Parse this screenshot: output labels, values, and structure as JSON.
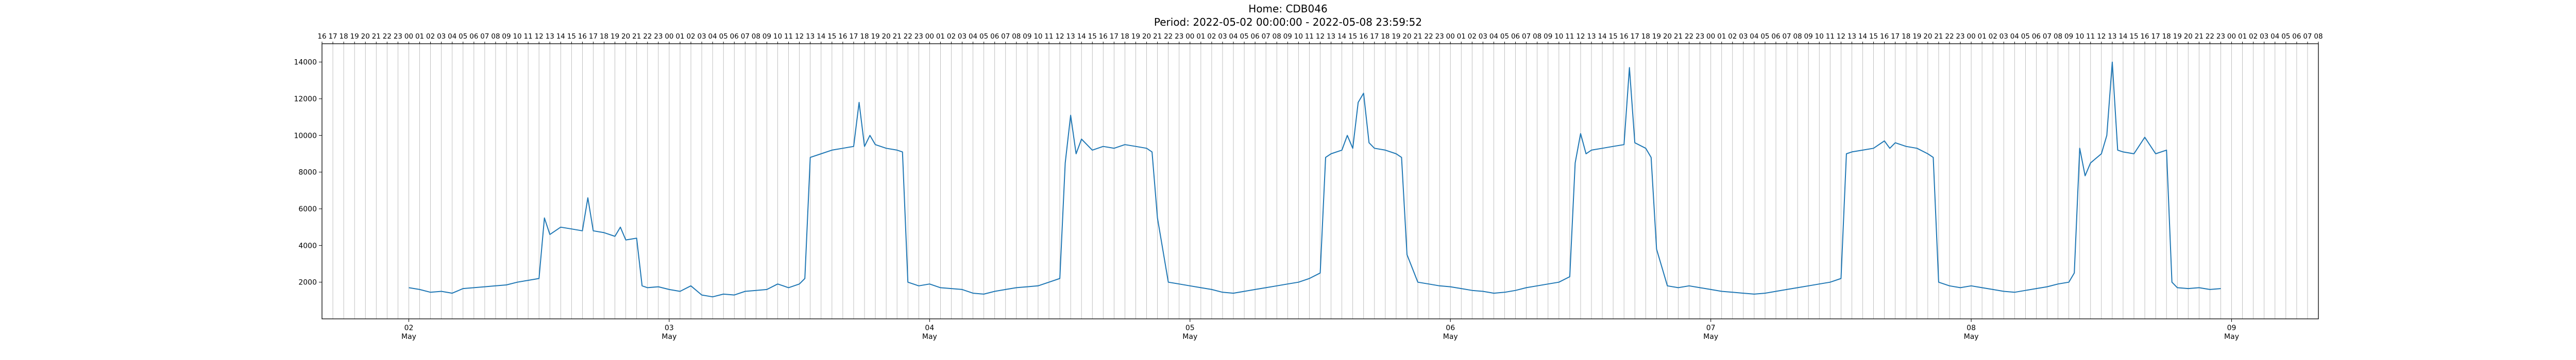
{
  "chart_data": {
    "type": "line",
    "title": "Home: CDB046",
    "subtitle": "Period: 2022-05-02 00:00:00 - 2022-05-08 23:59:52",
    "xlabel": "",
    "ylabel": "",
    "xlim": [
      "2022-05-01 16:00",
      "2022-05-09 08:00"
    ],
    "ylim": [
      0,
      15000
    ],
    "grid": "vertical lines at every hour",
    "line_color": "#1f77b4",
    "y_ticks": [
      2000,
      4000,
      6000,
      8000,
      10000,
      12000,
      14000
    ],
    "x_major_ticks": [
      {
        "date": "2022-05-02",
        "day": "02",
        "month": "May"
      },
      {
        "date": "2022-05-03",
        "day": "03",
        "month": "May"
      },
      {
        "date": "2022-05-04",
        "day": "04",
        "month": "May"
      },
      {
        "date": "2022-05-05",
        "day": "05",
        "month": "May"
      },
      {
        "date": "2022-05-06",
        "day": "06",
        "month": "May"
      },
      {
        "date": "2022-05-07",
        "day": "07",
        "month": "May"
      },
      {
        "date": "2022-05-08",
        "day": "08",
        "month": "May"
      },
      {
        "date": "2022-05-09",
        "day": "09",
        "month": "May"
      }
    ],
    "top_axis_hour_labels": [
      "16",
      "17",
      "18",
      "19",
      "20",
      "21",
      "22",
      "23",
      "00",
      "01",
      "02",
      "03",
      "04",
      "05",
      "06",
      "07",
      "08",
      "09",
      "10",
      "11",
      "12",
      "13",
      "14",
      "15",
      "16",
      "17",
      "18",
      "19",
      "20",
      "21",
      "22",
      "23",
      "00",
      "01",
      "02",
      "03",
      "04",
      "05",
      "06",
      "07",
      "08",
      "09",
      "10",
      "11",
      "12",
      "13",
      "14",
      "15",
      "16",
      "17",
      "18",
      "19",
      "20",
      "21",
      "22",
      "23",
      "00",
      "01",
      "02",
      "03",
      "04",
      "05",
      "06",
      "07",
      "08",
      "09",
      "10",
      "11",
      "12",
      "13",
      "14",
      "15",
      "16",
      "17",
      "18",
      "19",
      "20",
      "21",
      "22",
      "23",
      "00",
      "01",
      "02",
      "03",
      "04",
      "05",
      "06",
      "07",
      "08",
      "09",
      "10",
      "11",
      "12",
      "13",
      "14",
      "15",
      "16",
      "17",
      "18",
      "19",
      "20",
      "21",
      "22",
      "23",
      "00",
      "01",
      "02",
      "03",
      "04",
      "05",
      "06",
      "07",
      "08",
      "09",
      "10",
      "11",
      "12",
      "13",
      "14",
      "15",
      "16",
      "17",
      "18",
      "19",
      "20",
      "21",
      "22",
      "23",
      "00",
      "01",
      "02",
      "03",
      "04",
      "05",
      "06",
      "07",
      "08",
      "09",
      "10",
      "11",
      "12",
      "13",
      "14",
      "15",
      "16",
      "17",
      "18",
      "19",
      "20",
      "21",
      "22",
      "23",
      "00",
      "01",
      "02",
      "03",
      "04",
      "05",
      "06",
      "07",
      "08",
      "09",
      "10",
      "11",
      "12",
      "13",
      "14",
      "15",
      "16",
      "17",
      "18",
      "19",
      "20",
      "21",
      "22",
      "23",
      "00",
      "01",
      "02",
      "03",
      "04",
      "05",
      "06",
      "07",
      "08"
    ],
    "series": [
      {
        "name": "",
        "points": [
          [
            "2022-05-02 00:00",
            1700
          ],
          [
            "2022-05-02 01:00",
            1600
          ],
          [
            "2022-05-02 02:00",
            1450
          ],
          [
            "2022-05-02 03:00",
            1500
          ],
          [
            "2022-05-02 04:00",
            1400
          ],
          [
            "2022-05-02 05:00",
            1650
          ],
          [
            "2022-05-02 06:00",
            1700
          ],
          [
            "2022-05-02 07:00",
            1750
          ],
          [
            "2022-05-02 08:00",
            1800
          ],
          [
            "2022-05-02 09:00",
            1850
          ],
          [
            "2022-05-02 10:00",
            2000
          ],
          [
            "2022-05-02 11:00",
            2100
          ],
          [
            "2022-05-02 12:00",
            2200
          ],
          [
            "2022-05-02 12:30",
            5500
          ],
          [
            "2022-05-02 13:00",
            4600
          ],
          [
            "2022-05-02 14:00",
            5000
          ],
          [
            "2022-05-02 15:00",
            4900
          ],
          [
            "2022-05-02 16:00",
            4800
          ],
          [
            "2022-05-02 16:30",
            6600
          ],
          [
            "2022-05-02 17:00",
            4800
          ],
          [
            "2022-05-02 18:00",
            4700
          ],
          [
            "2022-05-02 19:00",
            4500
          ],
          [
            "2022-05-02 19:30",
            5000
          ],
          [
            "2022-05-02 20:00",
            4300
          ],
          [
            "2022-05-02 21:00",
            4400
          ],
          [
            "2022-05-02 21:30",
            1800
          ],
          [
            "2022-05-02 22:00",
            1700
          ],
          [
            "2022-05-02 23:00",
            1750
          ],
          [
            "2022-05-03 00:00",
            1600
          ],
          [
            "2022-05-03 01:00",
            1500
          ],
          [
            "2022-05-03 02:00",
            1800
          ],
          [
            "2022-05-03 03:00",
            1300
          ],
          [
            "2022-05-03 04:00",
            1200
          ],
          [
            "2022-05-03 05:00",
            1350
          ],
          [
            "2022-05-03 06:00",
            1300
          ],
          [
            "2022-05-03 07:00",
            1500
          ],
          [
            "2022-05-03 08:00",
            1550
          ],
          [
            "2022-05-03 09:00",
            1600
          ],
          [
            "2022-05-03 10:00",
            1900
          ],
          [
            "2022-05-03 11:00",
            1700
          ],
          [
            "2022-05-03 12:00",
            1900
          ],
          [
            "2022-05-03 12:30",
            2200
          ],
          [
            "2022-05-03 13:00",
            8800
          ],
          [
            "2022-05-03 14:00",
            9000
          ],
          [
            "2022-05-03 15:00",
            9200
          ],
          [
            "2022-05-03 16:00",
            9300
          ],
          [
            "2022-05-03 17:00",
            9400
          ],
          [
            "2022-05-03 17:30",
            11800
          ],
          [
            "2022-05-03 18:00",
            9400
          ],
          [
            "2022-05-03 18:30",
            10000
          ],
          [
            "2022-05-03 19:00",
            9500
          ],
          [
            "2022-05-03 20:00",
            9300
          ],
          [
            "2022-05-03 21:00",
            9200
          ],
          [
            "2022-05-03 21:30",
            9100
          ],
          [
            "2022-05-03 22:00",
            2000
          ],
          [
            "2022-05-03 23:00",
            1800
          ],
          [
            "2022-05-04 00:00",
            1900
          ],
          [
            "2022-05-04 01:00",
            1700
          ],
          [
            "2022-05-04 02:00",
            1650
          ],
          [
            "2022-05-04 03:00",
            1600
          ],
          [
            "2022-05-04 04:00",
            1400
          ],
          [
            "2022-05-04 05:00",
            1350
          ],
          [
            "2022-05-04 06:00",
            1500
          ],
          [
            "2022-05-04 07:00",
            1600
          ],
          [
            "2022-05-04 08:00",
            1700
          ],
          [
            "2022-05-04 09:00",
            1750
          ],
          [
            "2022-05-04 10:00",
            1800
          ],
          [
            "2022-05-04 11:00",
            2000
          ],
          [
            "2022-05-04 12:00",
            2200
          ],
          [
            "2022-05-04 12:30",
            8500
          ],
          [
            "2022-05-04 13:00",
            11100
          ],
          [
            "2022-05-04 13:30",
            9000
          ],
          [
            "2022-05-04 14:00",
            9800
          ],
          [
            "2022-05-04 15:00",
            9200
          ],
          [
            "2022-05-04 16:00",
            9400
          ],
          [
            "2022-05-04 17:00",
            9300
          ],
          [
            "2022-05-04 18:00",
            9500
          ],
          [
            "2022-05-04 19:00",
            9400
          ],
          [
            "2022-05-04 20:00",
            9300
          ],
          [
            "2022-05-04 20:30",
            9100
          ],
          [
            "2022-05-04 21:00",
            5500
          ],
          [
            "2022-05-04 22:00",
            2000
          ],
          [
            "2022-05-04 23:00",
            1900
          ],
          [
            "2022-05-05 00:00",
            1800
          ],
          [
            "2022-05-05 01:00",
            1700
          ],
          [
            "2022-05-05 02:00",
            1600
          ],
          [
            "2022-05-05 03:00",
            1450
          ],
          [
            "2022-05-05 04:00",
            1400
          ],
          [
            "2022-05-05 05:00",
            1500
          ],
          [
            "2022-05-05 06:00",
            1600
          ],
          [
            "2022-05-05 07:00",
            1700
          ],
          [
            "2022-05-05 08:00",
            1800
          ],
          [
            "2022-05-05 09:00",
            1900
          ],
          [
            "2022-05-05 10:00",
            2000
          ],
          [
            "2022-05-05 11:00",
            2200
          ],
          [
            "2022-05-05 12:00",
            2500
          ],
          [
            "2022-05-05 12:30",
            8800
          ],
          [
            "2022-05-05 13:00",
            9000
          ],
          [
            "2022-05-05 14:00",
            9200
          ],
          [
            "2022-05-05 14:30",
            10000
          ],
          [
            "2022-05-05 15:00",
            9300
          ],
          [
            "2022-05-05 15:30",
            11800
          ],
          [
            "2022-05-05 16:00",
            12300
          ],
          [
            "2022-05-05 16:30",
            9600
          ],
          [
            "2022-05-05 17:00",
            9300
          ],
          [
            "2022-05-05 18:00",
            9200
          ],
          [
            "2022-05-05 19:00",
            9000
          ],
          [
            "2022-05-05 19:30",
            8800
          ],
          [
            "2022-05-05 20:00",
            3500
          ],
          [
            "2022-05-05 21:00",
            2000
          ],
          [
            "2022-05-05 22:00",
            1900
          ],
          [
            "2022-05-05 23:00",
            1800
          ],
          [
            "2022-05-06 00:00",
            1750
          ],
          [
            "2022-05-06 01:00",
            1650
          ],
          [
            "2022-05-06 02:00",
            1550
          ],
          [
            "2022-05-06 03:00",
            1500
          ],
          [
            "2022-05-06 04:00",
            1400
          ],
          [
            "2022-05-06 05:00",
            1450
          ],
          [
            "2022-05-06 06:00",
            1550
          ],
          [
            "2022-05-06 07:00",
            1700
          ],
          [
            "2022-05-06 08:00",
            1800
          ],
          [
            "2022-05-06 09:00",
            1900
          ],
          [
            "2022-05-06 10:00",
            2000
          ],
          [
            "2022-05-06 11:00",
            2300
          ],
          [
            "2022-05-06 11:30",
            8500
          ],
          [
            "2022-05-06 12:00",
            10100
          ],
          [
            "2022-05-06 12:30",
            9000
          ],
          [
            "2022-05-06 13:00",
            9200
          ],
          [
            "2022-05-06 14:00",
            9300
          ],
          [
            "2022-05-06 15:00",
            9400
          ],
          [
            "2022-05-06 16:00",
            9500
          ],
          [
            "2022-05-06 16:30",
            13700
          ],
          [
            "2022-05-06 17:00",
            9600
          ],
          [
            "2022-05-06 18:00",
            9300
          ],
          [
            "2022-05-06 18:30",
            8800
          ],
          [
            "2022-05-06 19:00",
            3800
          ],
          [
            "2022-05-06 20:00",
            1800
          ],
          [
            "2022-05-06 21:00",
            1700
          ],
          [
            "2022-05-06 22:00",
            1800
          ],
          [
            "2022-05-06 23:00",
            1700
          ],
          [
            "2022-05-07 00:00",
            1600
          ],
          [
            "2022-05-07 01:00",
            1500
          ],
          [
            "2022-05-07 02:00",
            1450
          ],
          [
            "2022-05-07 03:00",
            1400
          ],
          [
            "2022-05-07 04:00",
            1350
          ],
          [
            "2022-05-07 05:00",
            1400
          ],
          [
            "2022-05-07 06:00",
            1500
          ],
          [
            "2022-05-07 07:00",
            1600
          ],
          [
            "2022-05-07 08:00",
            1700
          ],
          [
            "2022-05-07 09:00",
            1800
          ],
          [
            "2022-05-07 10:00",
            1900
          ],
          [
            "2022-05-07 11:00",
            2000
          ],
          [
            "2022-05-07 12:00",
            2200
          ],
          [
            "2022-05-07 12:30",
            9000
          ],
          [
            "2022-05-07 13:00",
            9100
          ],
          [
            "2022-05-07 14:00",
            9200
          ],
          [
            "2022-05-07 15:00",
            9300
          ],
          [
            "2022-05-07 16:00",
            9700
          ],
          [
            "2022-05-07 16:30",
            9300
          ],
          [
            "2022-05-07 17:00",
            9600
          ],
          [
            "2022-05-07 18:00",
            9400
          ],
          [
            "2022-05-07 19:00",
            9300
          ],
          [
            "2022-05-07 20:00",
            9000
          ],
          [
            "2022-05-07 20:30",
            8800
          ],
          [
            "2022-05-07 21:00",
            2000
          ],
          [
            "2022-05-07 22:00",
            1800
          ],
          [
            "2022-05-07 23:00",
            1700
          ],
          [
            "2022-05-08 00:00",
            1800
          ],
          [
            "2022-05-08 01:00",
            1700
          ],
          [
            "2022-05-08 02:00",
            1600
          ],
          [
            "2022-05-08 03:00",
            1500
          ],
          [
            "2022-05-08 04:00",
            1450
          ],
          [
            "2022-05-08 05:00",
            1550
          ],
          [
            "2022-05-08 06:00",
            1650
          ],
          [
            "2022-05-08 07:00",
            1750
          ],
          [
            "2022-05-08 08:00",
            1900
          ],
          [
            "2022-05-08 09:00",
            2000
          ],
          [
            "2022-05-08 09:30",
            2500
          ],
          [
            "2022-05-08 10:00",
            9300
          ],
          [
            "2022-05-08 10:30",
            7800
          ],
          [
            "2022-05-08 11:00",
            8500
          ],
          [
            "2022-05-08 12:00",
            9000
          ],
          [
            "2022-05-08 12:30",
            10000
          ],
          [
            "2022-05-08 13:00",
            14000
          ],
          [
            "2022-05-08 13:30",
            9200
          ],
          [
            "2022-05-08 14:00",
            9100
          ],
          [
            "2022-05-08 15:00",
            9000
          ],
          [
            "2022-05-08 16:00",
            9900
          ],
          [
            "2022-05-08 17:00",
            9000
          ],
          [
            "2022-05-08 18:00",
            9200
          ],
          [
            "2022-05-08 18:30",
            2000
          ],
          [
            "2022-05-08 19:00",
            1700
          ],
          [
            "2022-05-08 20:00",
            1650
          ],
          [
            "2022-05-08 21:00",
            1700
          ],
          [
            "2022-05-08 22:00",
            1600
          ],
          [
            "2022-05-08 23:00",
            1650
          ]
        ]
      }
    ]
  }
}
